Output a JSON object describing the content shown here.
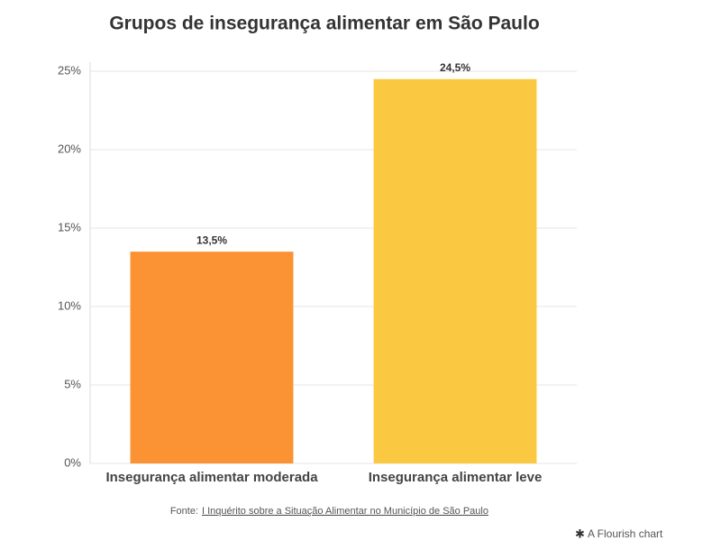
{
  "chart_data": {
    "type": "bar",
    "title": "Grupos de insegurança alimentar em São Paulo",
    "categories": [
      "Insegurança alimentar moderada",
      "Insegurança alimentar leve"
    ],
    "values": [
      13.5,
      24.5
    ],
    "value_labels": [
      "13,5%",
      "24,5%"
    ],
    "colors": [
      "#fb9334",
      "#fbc941"
    ],
    "ylim": [
      0,
      25
    ],
    "yticks": [
      {
        "value": 0,
        "label": "0%"
      },
      {
        "value": 5,
        "label": "5%"
      },
      {
        "value": 10,
        "label": "10%"
      },
      {
        "value": 15,
        "label": "15%"
      },
      {
        "value": 20,
        "label": "20%"
      },
      {
        "value": 25,
        "label": "25%"
      }
    ],
    "grid": true,
    "source_prefix": "Fonte:",
    "source": "I Inquérito sobre a Situação Alimentar no Município de São Paulo",
    "credit": "A Flourish chart"
  }
}
